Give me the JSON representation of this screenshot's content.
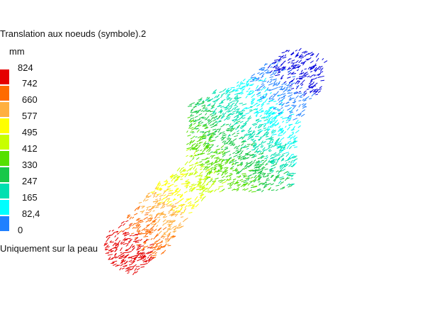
{
  "legend": {
    "title": "Translation aux noeuds (symbole).2",
    "unit": "mm",
    "ticks": [
      "824",
      "742",
      "660",
      "577",
      "495",
      "412",
      "330",
      "247",
      "165",
      "82,4",
      "0"
    ],
    "colors": [
      "#e50000",
      "#ff6a00",
      "#ffb040",
      "#ffff00",
      "#c8ff00",
      "#55e000",
      "#18c848",
      "#00e0b0",
      "#00ffff",
      "#2080ff",
      "#0000dd"
    ],
    "note": "Uniquement sur la peau"
  },
  "visualization": {
    "type": "displacement-vector-plot",
    "range_mm": [
      0,
      824
    ],
    "colormap": [
      "#0000dd",
      "#2080ff",
      "#00ffff",
      "#00e0b0",
      "#18c848",
      "#55e000",
      "#c8ff00",
      "#ffff00",
      "#ffb040",
      "#ff6a00",
      "#e50000"
    ]
  }
}
